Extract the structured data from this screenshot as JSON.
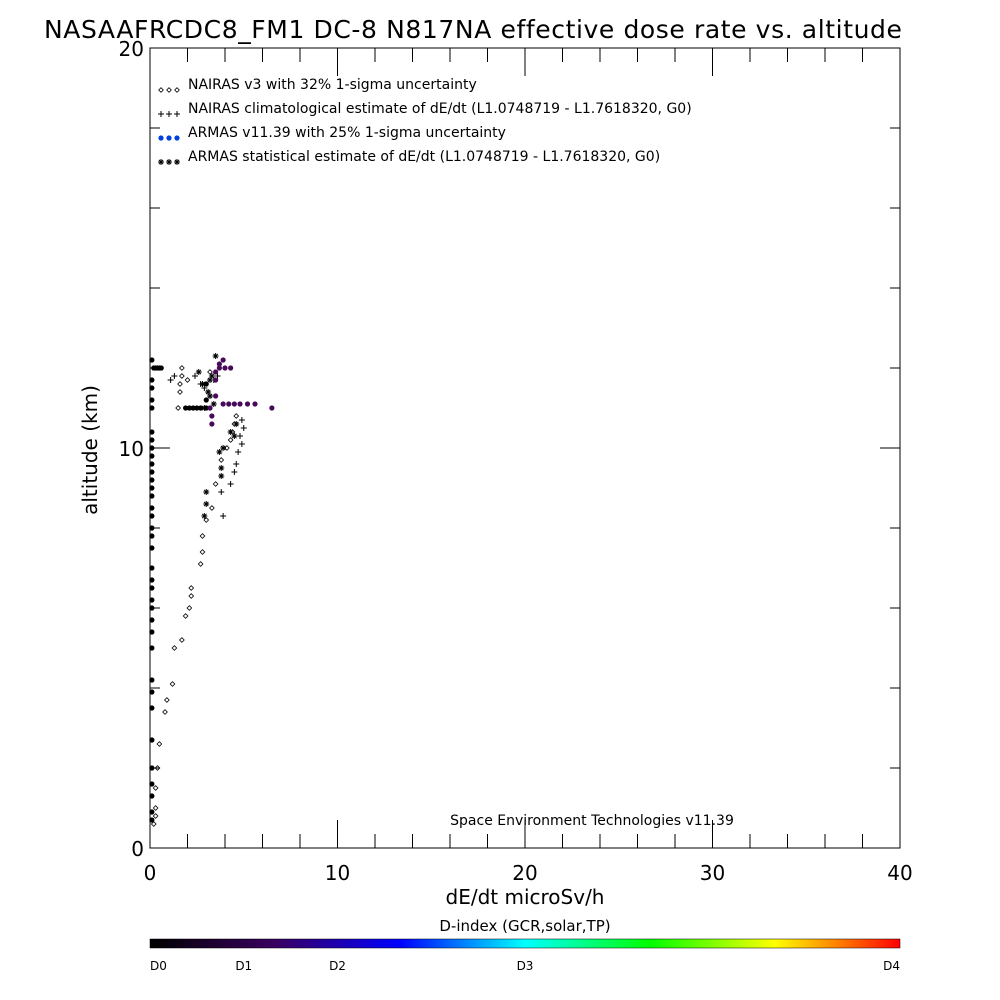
{
  "chart_data": {
    "type": "scatter",
    "title": "NASAAFRCDC8_FM1 DC-8   N817NA effective dose rate vs. altitude",
    "xlabel": "dE/dt microSv/h",
    "ylabel": "altitude (km)",
    "xlim": [
      0,
      40
    ],
    "ylim": [
      0,
      20
    ],
    "x_ticks": [
      0,
      10,
      20,
      30,
      40
    ],
    "y_ticks": [
      0,
      10,
      20
    ],
    "grid": false,
    "legend_position": "top-left",
    "credit": "Space Environment Technologies v11.39",
    "colorbar": {
      "title": "D-index (GCR,solar,TP)",
      "labels": [
        "D0",
        "D1",
        "D2",
        "D3",
        "D4"
      ],
      "label_positions": [
        0,
        0.125,
        0.25,
        0.5,
        1.0
      ],
      "colors": [
        "#000000",
        "#3a0060",
        "#0000ff",
        "#00ffff",
        "#00ff00",
        "#ffff00",
        "#ff0000"
      ]
    },
    "series": [
      {
        "name": "NAIRAS v3 with 32% 1-sigma uncertainty",
        "marker": "diamond",
        "color": "#000000",
        "points": [
          [
            0.2,
            0.6
          ],
          [
            0.3,
            0.8
          ],
          [
            0.3,
            1.0
          ],
          [
            0.3,
            1.5
          ],
          [
            0.4,
            2.0
          ],
          [
            0.5,
            2.6
          ],
          [
            0.8,
            3.4
          ],
          [
            0.9,
            3.7
          ],
          [
            1.2,
            4.1
          ],
          [
            1.3,
            5.0
          ],
          [
            1.7,
            5.2
          ],
          [
            1.9,
            5.8
          ],
          [
            2.1,
            6.0
          ],
          [
            2.2,
            6.3
          ],
          [
            2.2,
            6.5
          ],
          [
            2.7,
            7.1
          ],
          [
            2.8,
            7.4
          ],
          [
            2.8,
            7.8
          ],
          [
            3.0,
            8.2
          ],
          [
            3.3,
            8.5
          ],
          [
            3.5,
            9.1
          ],
          [
            3.8,
            9.7
          ],
          [
            4.1,
            10.0
          ],
          [
            4.3,
            10.2
          ],
          [
            4.4,
            10.4
          ],
          [
            4.5,
            10.6
          ],
          [
            4.6,
            10.8
          ],
          [
            1.5,
            11.0
          ],
          [
            1.6,
            11.4
          ],
          [
            1.6,
            11.6
          ],
          [
            1.7,
            11.8
          ],
          [
            1.7,
            12.0
          ],
          [
            2.0,
            11.7
          ],
          [
            3.2,
            11.9
          ]
        ]
      },
      {
        "name": "NAIRAS climatological estimate of dE/dt (L1.0748719 - L1.7618320, G0)",
        "marker": "plus",
        "color": "#000000",
        "points": [
          [
            3.9,
            8.3
          ],
          [
            3.8,
            8.9
          ],
          [
            4.3,
            9.1
          ],
          [
            4.5,
            9.4
          ],
          [
            4.6,
            9.6
          ],
          [
            4.7,
            9.9
          ],
          [
            4.9,
            10.1
          ],
          [
            4.8,
            10.3
          ],
          [
            5.0,
            10.5
          ],
          [
            4.9,
            10.7
          ],
          [
            1.1,
            11.7
          ],
          [
            1.3,
            11.8
          ],
          [
            2.4,
            11.8
          ],
          [
            2.7,
            11.6
          ],
          [
            3.4,
            11.7
          ],
          [
            3.6,
            11.8
          ],
          [
            2.9,
            11.5
          ]
        ]
      },
      {
        "name": "ARMAS v11.39 with 25% 1-sigma uncertainty",
        "marker": "dot",
        "color": "#0040e0",
        "points": [
          [
            0.1,
            0.7
          ],
          [
            0.1,
            0.9
          ],
          [
            0.1,
            1.3
          ],
          [
            0.1,
            1.6
          ],
          [
            0.1,
            2.0
          ],
          [
            0.1,
            2.7
          ],
          [
            0.1,
            3.5
          ],
          [
            0.1,
            3.9
          ],
          [
            0.1,
            4.2
          ],
          [
            0.1,
            5.0
          ],
          [
            0.1,
            5.4
          ],
          [
            0.1,
            5.7
          ],
          [
            0.1,
            6.0
          ],
          [
            0.1,
            6.2
          ],
          [
            0.1,
            6.5
          ],
          [
            0.1,
            6.7
          ],
          [
            0.1,
            7.0
          ],
          [
            0.1,
            7.5
          ],
          [
            0.1,
            7.8
          ],
          [
            0.1,
            8.0
          ],
          [
            0.1,
            8.3
          ],
          [
            0.1,
            8.5
          ],
          [
            0.1,
            8.8
          ],
          [
            0.1,
            9.0
          ],
          [
            0.1,
            9.2
          ],
          [
            0.1,
            9.4
          ],
          [
            0.1,
            9.6
          ],
          [
            0.1,
            9.8
          ],
          [
            0.1,
            10.0
          ],
          [
            0.1,
            10.2
          ],
          [
            0.1,
            10.4
          ],
          [
            0.1,
            11.0
          ],
          [
            0.1,
            11.2
          ],
          [
            0.1,
            11.5
          ],
          [
            0.1,
            11.7
          ],
          [
            0.1,
            12.2
          ],
          [
            0.2,
            12.0
          ],
          [
            0.3,
            12.0
          ],
          [
            0.4,
            12.0
          ],
          [
            0.5,
            12.0
          ],
          [
            0.6,
            12.0
          ],
          [
            1.9,
            11.0
          ],
          [
            2.1,
            11.0
          ],
          [
            2.3,
            11.0
          ],
          [
            2.5,
            11.0
          ],
          [
            2.7,
            11.0
          ],
          [
            3.0,
            11.0
          ],
          [
            3.2,
            11.0
          ],
          [
            3.3,
            10.6
          ],
          [
            3.3,
            10.8
          ],
          [
            3.0,
            11.2
          ],
          [
            3.0,
            11.6
          ],
          [
            3.5,
            11.3
          ],
          [
            3.5,
            11.7
          ],
          [
            3.5,
            11.9
          ],
          [
            3.7,
            12.1
          ],
          [
            3.9,
            12.2
          ],
          [
            3.7,
            12.0
          ],
          [
            4.0,
            12.0
          ],
          [
            4.3,
            12.0
          ],
          [
            3.9,
            11.1
          ],
          [
            4.2,
            11.1
          ],
          [
            4.5,
            11.1
          ],
          [
            4.8,
            11.1
          ],
          [
            5.2,
            11.1
          ],
          [
            5.6,
            11.1
          ],
          [
            6.5,
            11.0
          ]
        ]
      },
      {
        "name": "ARMAS statistical estimate of dE/dt (L1.0748719 - L1.7618320, G0)",
        "marker": "asterisk",
        "color": "#000000",
        "points": [
          [
            2.9,
            8.3
          ],
          [
            3.0,
            8.6
          ],
          [
            3.0,
            8.9
          ],
          [
            3.8,
            9.3
          ],
          [
            3.8,
            9.5
          ],
          [
            3.7,
            9.9
          ],
          [
            3.9,
            10.0
          ],
          [
            4.3,
            10.4
          ],
          [
            4.6,
            10.6
          ],
          [
            4.5,
            10.3
          ],
          [
            2.6,
            11.9
          ],
          [
            2.8,
            11.6
          ],
          [
            3.2,
            11.7
          ],
          [
            3.3,
            11.8
          ],
          [
            3.5,
            12.3
          ],
          [
            3.2,
            11.3
          ],
          [
            3.4,
            11.1
          ],
          [
            2.9,
            11.0
          ],
          [
            3.1,
            11.4
          ]
        ]
      }
    ]
  }
}
